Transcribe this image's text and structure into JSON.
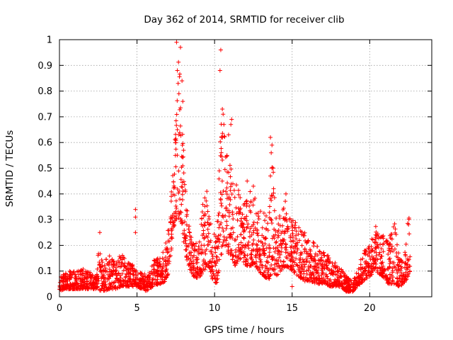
{
  "chart_data": {
    "type": "scatter",
    "title": "Day 362 of 2014, SRMTID for receiver clib",
    "xlabel": "GPS time / hours",
    "ylabel": "SRMTID / TECUs",
    "xlim": [
      0,
      24
    ],
    "ylim": [
      0,
      1
    ],
    "xticks": [
      "0",
      "5",
      "10",
      "15",
      "20"
    ],
    "yticks": [
      "0",
      "0.1",
      "0.2",
      "0.3",
      "0.4",
      "0.5",
      "0.6",
      "0.7",
      "0.8",
      "0.9",
      "1"
    ],
    "grid": true,
    "marker": "+",
    "series": [
      {
        "name": "SRMTID",
        "color": "#ff0000",
        "envelope": [
          [
            0.0,
            0.02,
            0.08
          ],
          [
            0.3,
            0.03,
            0.1
          ],
          [
            0.6,
            0.03,
            0.1
          ],
          [
            1.0,
            0.03,
            0.1
          ],
          [
            1.5,
            0.03,
            0.11
          ],
          [
            2.0,
            0.03,
            0.1
          ],
          [
            2.4,
            0.03,
            0.09
          ],
          [
            2.6,
            0.02,
            0.25
          ],
          [
            2.8,
            0.02,
            0.12
          ],
          [
            3.2,
            0.03,
            0.17
          ],
          [
            3.6,
            0.03,
            0.13
          ],
          [
            4.0,
            0.04,
            0.17
          ],
          [
            4.5,
            0.04,
            0.13
          ],
          [
            4.9,
            0.04,
            0.12
          ],
          [
            5.3,
            0.03,
            0.1
          ],
          [
            5.7,
            0.02,
            0.08
          ],
          [
            6.0,
            0.04,
            0.14
          ],
          [
            6.5,
            0.05,
            0.16
          ],
          [
            6.8,
            0.06,
            0.19
          ],
          [
            7.1,
            0.1,
            0.3
          ],
          [
            7.3,
            0.25,
            0.5
          ],
          [
            7.5,
            0.3,
            0.7
          ],
          [
            7.7,
            0.3,
            0.95
          ],
          [
            7.9,
            0.25,
            0.7
          ],
          [
            8.1,
            0.18,
            0.45
          ],
          [
            8.3,
            0.12,
            0.3
          ],
          [
            8.6,
            0.08,
            0.22
          ],
          [
            9.0,
            0.07,
            0.2
          ],
          [
            9.3,
            0.1,
            0.4
          ],
          [
            9.6,
            0.12,
            0.35
          ],
          [
            9.9,
            0.06,
            0.25
          ],
          [
            10.2,
            0.05,
            0.3
          ],
          [
            10.4,
            0.15,
            0.7
          ],
          [
            10.7,
            0.2,
            0.65
          ],
          [
            11.0,
            0.15,
            0.55
          ],
          [
            11.3,
            0.12,
            0.45
          ],
          [
            11.7,
            0.15,
            0.4
          ],
          [
            12.0,
            0.12,
            0.38
          ],
          [
            12.4,
            0.12,
            0.42
          ],
          [
            12.8,
            0.1,
            0.35
          ],
          [
            13.2,
            0.08,
            0.33
          ],
          [
            13.5,
            0.06,
            0.35
          ],
          [
            13.7,
            0.1,
            0.58
          ],
          [
            14.0,
            0.08,
            0.3
          ],
          [
            14.3,
            0.1,
            0.35
          ],
          [
            14.6,
            0.12,
            0.38
          ],
          [
            15.0,
            0.1,
            0.3
          ],
          [
            15.4,
            0.08,
            0.28
          ],
          [
            15.8,
            0.06,
            0.25
          ],
          [
            16.2,
            0.06,
            0.22
          ],
          [
            16.6,
            0.05,
            0.2
          ],
          [
            17.0,
            0.05,
            0.18
          ],
          [
            17.5,
            0.04,
            0.15
          ],
          [
            18.0,
            0.04,
            0.12
          ],
          [
            18.5,
            0.02,
            0.08
          ],
          [
            18.9,
            0.02,
            0.06
          ],
          [
            19.2,
            0.04,
            0.1
          ],
          [
            19.6,
            0.06,
            0.18
          ],
          [
            20.0,
            0.08,
            0.2
          ],
          [
            20.4,
            0.1,
            0.28
          ],
          [
            20.8,
            0.08,
            0.25
          ],
          [
            21.2,
            0.05,
            0.22
          ],
          [
            21.6,
            0.05,
            0.3
          ],
          [
            21.9,
            0.04,
            0.15
          ],
          [
            22.2,
            0.05,
            0.14
          ],
          [
            22.5,
            0.08,
            0.32
          ],
          [
            22.6,
            0.1,
            0.35
          ]
        ],
        "spikes": [
          [
            2.6,
            0.25
          ],
          [
            4.9,
            0.34
          ],
          [
            4.9,
            0.31
          ],
          [
            4.9,
            0.25
          ],
          [
            7.55,
            0.99
          ],
          [
            7.6,
            0.88
          ],
          [
            7.65,
            0.83
          ],
          [
            7.8,
            0.97
          ],
          [
            7.9,
            0.84
          ],
          [
            7.95,
            0.76
          ],
          [
            7.7,
            0.79
          ],
          [
            7.6,
            0.65
          ],
          [
            7.7,
            0.63
          ],
          [
            7.5,
            0.6
          ],
          [
            8.0,
            0.57
          ],
          [
            10.4,
            0.96
          ],
          [
            10.35,
            0.88
          ],
          [
            10.5,
            0.73
          ],
          [
            10.55,
            0.71
          ],
          [
            10.6,
            0.67
          ],
          [
            10.45,
            0.62
          ],
          [
            11.1,
            0.69
          ],
          [
            11.05,
            0.67
          ],
          [
            10.9,
            0.63
          ],
          [
            10.8,
            0.55
          ],
          [
            13.6,
            0.62
          ],
          [
            13.7,
            0.59
          ],
          [
            13.65,
            0.56
          ],
          [
            13.7,
            0.5
          ],
          [
            13.6,
            0.47
          ],
          [
            15.0,
            0.04
          ],
          [
            14.6,
            0.4
          ],
          [
            9.5,
            0.41
          ],
          [
            12.1,
            0.45
          ],
          [
            12.5,
            0.43
          ]
        ]
      }
    ]
  }
}
